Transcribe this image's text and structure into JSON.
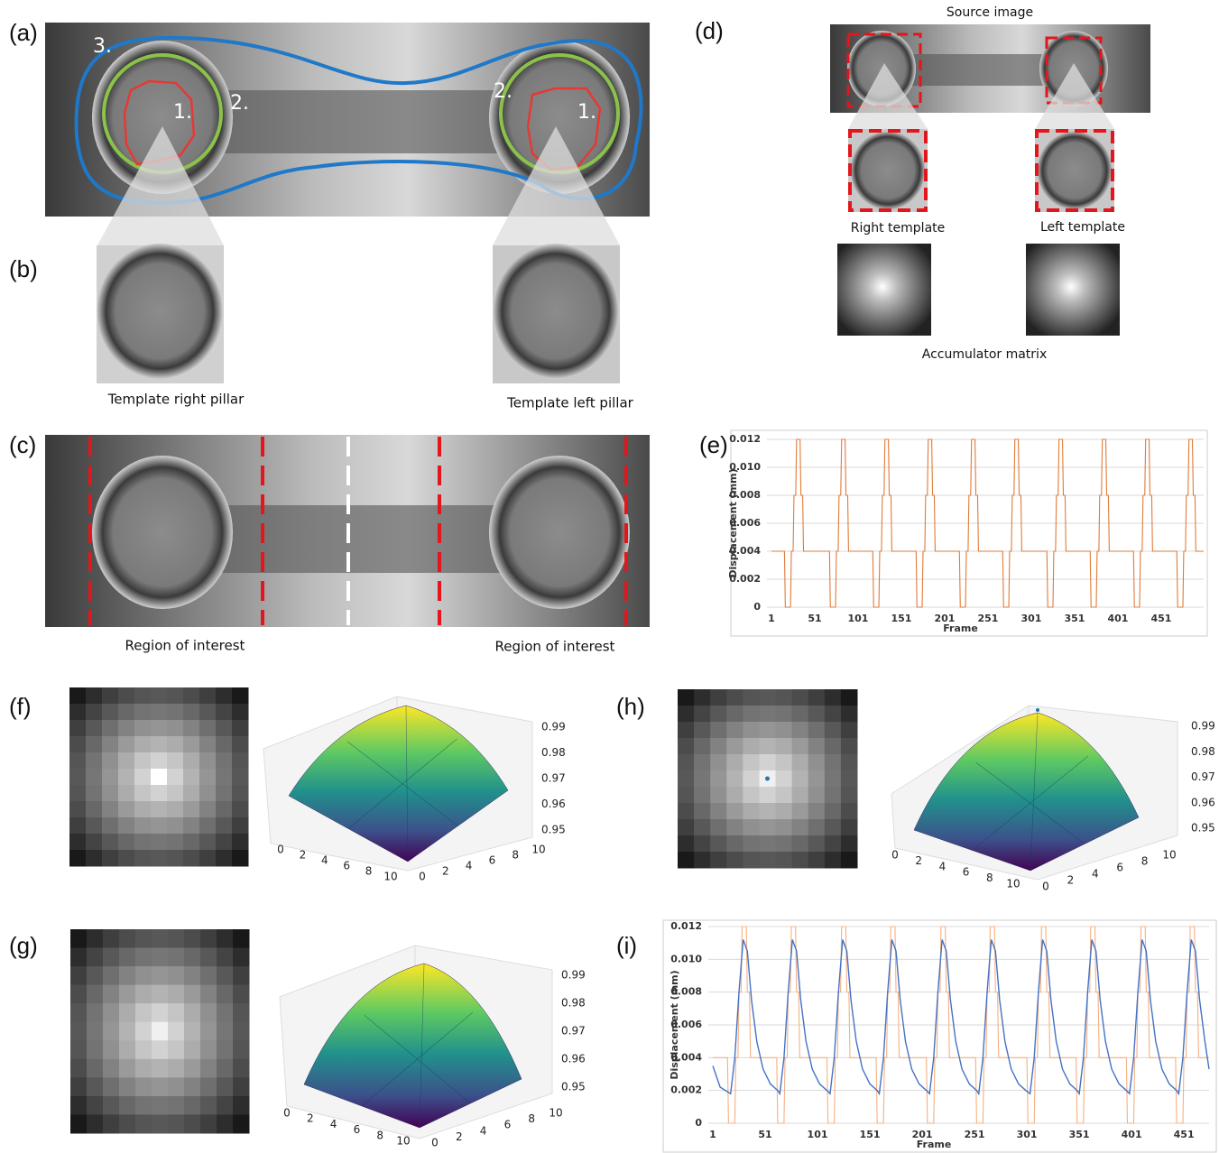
{
  "panel_labels": {
    "a": "(a)",
    "b": "(b)",
    "c": "(c)",
    "d": "(d)",
    "e": "(e)",
    "f": "(f)",
    "g": "(g)",
    "h": "(h)",
    "i": "(i)"
  },
  "panel_a": {
    "markers": [
      "3.",
      "2.",
      "1.",
      "2.",
      "1."
    ]
  },
  "panel_b": {
    "captions": [
      "Template right pillar",
      "Template left pillar"
    ]
  },
  "panel_c": {
    "captions": [
      "Region of interest",
      "Region of interest"
    ]
  },
  "panel_d": {
    "source": "Source image",
    "templates": [
      "Right template",
      "Left template"
    ],
    "accumulator": "Accumulator matrix"
  },
  "panel_f": {
    "zticks": [
      0.99,
      0.98,
      0.97,
      0.96,
      0.95
    ],
    "xticks": [
      0,
      2,
      4,
      6,
      8,
      10
    ],
    "yticks": [
      0,
      2,
      4,
      6,
      8,
      10
    ]
  },
  "panel_g": {
    "zticks": [
      0.99,
      0.98,
      0.97,
      0.96,
      0.95
    ],
    "xticks": [
      0,
      2,
      4,
      6,
      8,
      10
    ],
    "yticks": [
      0,
      2,
      4,
      6,
      8,
      10
    ]
  },
  "panel_h": {
    "zticks": [
      0.99,
      0.98,
      0.97,
      0.96,
      0.95
    ],
    "xticks": [
      0,
      2,
      4,
      6,
      8,
      10
    ],
    "yticks": [
      0,
      2,
      4,
      6,
      8,
      10
    ]
  },
  "chart_data": [
    {
      "type": "line",
      "xlabel": "Frame",
      "ylabel": "Displacement (mm)",
      "xlim": [
        1,
        500
      ],
      "ylim": [
        0,
        0.012
      ],
      "xticks": [
        1,
        51,
        101,
        151,
        201,
        251,
        301,
        351,
        401,
        451
      ],
      "yticks": [
        0,
        0.002,
        0.004,
        0.006,
        0.008,
        {
          "value": 0.01,
          "label": "0.010"
        },
        0.012
      ],
      "grid": true,
      "series": [
        {
          "color": "#e07b39",
          "x": [
            1,
            16,
            17,
            23,
            24,
            26,
            27,
            29,
            30,
            34,
            35,
            37,
            38,
            68,
            69,
            75,
            76,
            78,
            79,
            81,
            82,
            86,
            87,
            89,
            90,
            118,
            119,
            125,
            126,
            128,
            129,
            131,
            132,
            136,
            137,
            139,
            140,
            168,
            169,
            175,
            176,
            178,
            179,
            181,
            182,
            186,
            187,
            189,
            190,
            218,
            219,
            225,
            226,
            228,
            229,
            231,
            232,
            236,
            237,
            239,
            240,
            268,
            269,
            275,
            276,
            278,
            279,
            281,
            282,
            286,
            287,
            289,
            290,
            319,
            320,
            326,
            327,
            329,
            330,
            332,
            333,
            337,
            338,
            340,
            341,
            369,
            370,
            376,
            377,
            379,
            380,
            382,
            383,
            387,
            388,
            390,
            391,
            419,
            420,
            426,
            427,
            429,
            430,
            432,
            433,
            437,
            438,
            440,
            441,
            469,
            470,
            476,
            477,
            479,
            480,
            482,
            483,
            487,
            488,
            490,
            491,
            500
          ],
          "values": [
            0.004,
            0.004,
            0,
            0,
            0.004,
            0.004,
            0.008,
            0.008,
            0.012,
            0.012,
            0.008,
            0.008,
            0.004,
            0.004,
            0,
            0,
            0.004,
            0.004,
            0.008,
            0.008,
            0.012,
            0.012,
            0.008,
            0.008,
            0.004,
            0.004,
            0,
            0,
            0.004,
            0.004,
            0.008,
            0.008,
            0.012,
            0.012,
            0.008,
            0.008,
            0.004,
            0.004,
            0,
            0,
            0.004,
            0.004,
            0.008,
            0.008,
            0.012,
            0.012,
            0.008,
            0.008,
            0.004,
            0.004,
            0,
            0,
            0.004,
            0.004,
            0.008,
            0.008,
            0.012,
            0.012,
            0.008,
            0.008,
            0.004,
            0.004,
            0,
            0,
            0.004,
            0.004,
            0.008,
            0.008,
            0.012,
            0.012,
            0.008,
            0.008,
            0.004,
            0.004,
            0,
            0,
            0.004,
            0.004,
            0.008,
            0.008,
            0.012,
            0.012,
            0.008,
            0.008,
            0.004,
            0.004,
            0,
            0,
            0.004,
            0.004,
            0.008,
            0.008,
            0.012,
            0.012,
            0.008,
            0.008,
            0.004,
            0.004,
            0,
            0,
            0.004,
            0.004,
            0.008,
            0.008,
            0.012,
            0.012,
            0.008,
            0.008,
            0.004,
            0.004,
            0,
            0,
            0.004,
            0.004,
            0.008,
            0.008,
            0.012,
            0.012,
            0.008,
            0.008,
            0.004,
            0.004
          ]
        }
      ]
    },
    {
      "type": "line",
      "xlabel": "Frame",
      "ylabel": "Displacement (mm)",
      "xlim": [
        1,
        475
      ],
      "ylim": [
        0,
        0.012
      ],
      "xticks": [
        1,
        51,
        101,
        151,
        201,
        251,
        301,
        351,
        401,
        451
      ],
      "yticks": [
        0,
        0.002,
        0.004,
        0.006,
        0.008,
        {
          "value": 0.01,
          "label": "0.010"
        },
        0.012
      ],
      "grid": true,
      "series": [
        {
          "color": "#f4b183",
          "x": [
            1,
            15,
            16,
            22,
            23,
            25,
            26,
            28,
            29,
            33,
            34,
            36,
            37,
            62,
            63,
            69,
            70,
            72,
            73,
            75,
            76,
            80,
            81,
            83,
            84,
            110,
            111,
            117,
            118,
            120,
            121,
            123,
            124,
            128,
            129,
            131,
            132,
            157,
            158,
            164,
            165,
            167,
            168,
            170,
            171,
            175,
            176,
            178,
            179,
            205,
            206,
            212,
            213,
            215,
            216,
            218,
            219,
            223,
            224,
            226,
            227,
            252,
            253,
            259,
            260,
            262,
            263,
            265,
            266,
            270,
            271,
            273,
            274,
            301,
            302,
            308,
            309,
            311,
            312,
            314,
            315,
            319,
            320,
            322,
            323,
            348,
            349,
            355,
            356,
            358,
            359,
            361,
            362,
            366,
            367,
            369,
            370,
            396,
            397,
            403,
            404,
            406,
            407,
            409,
            410,
            414,
            415,
            417,
            418,
            443,
            444,
            450,
            451,
            453,
            454,
            456,
            457,
            461,
            462,
            464,
            465,
            475
          ],
          "values": [
            0.004,
            0.004,
            0,
            0,
            0.004,
            0.004,
            0.008,
            0.008,
            0.012,
            0.012,
            0.008,
            0.008,
            0.004,
            0.004,
            0,
            0,
            0.004,
            0.004,
            0.008,
            0.008,
            0.012,
            0.012,
            0.008,
            0.008,
            0.004,
            0.004,
            0,
            0,
            0.004,
            0.004,
            0.008,
            0.008,
            0.012,
            0.012,
            0.008,
            0.008,
            0.004,
            0.004,
            0,
            0,
            0.004,
            0.004,
            0.008,
            0.008,
            0.012,
            0.012,
            0.008,
            0.008,
            0.004,
            0.004,
            0,
            0,
            0.004,
            0.004,
            0.008,
            0.008,
            0.012,
            0.012,
            0.008,
            0.008,
            0.004,
            0.004,
            0,
            0,
            0.004,
            0.004,
            0.008,
            0.008,
            0.012,
            0.012,
            0.008,
            0.008,
            0.004,
            0.004,
            0,
            0,
            0.004,
            0.004,
            0.008,
            0.008,
            0.012,
            0.012,
            0.008,
            0.008,
            0.004,
            0.004,
            0,
            0,
            0.004,
            0.004,
            0.008,
            0.008,
            0.012,
            0.012,
            0.008,
            0.008,
            0.004,
            0.004,
            0,
            0,
            0.004,
            0.004,
            0.008,
            0.008,
            0.012,
            0.012,
            0.008,
            0.008,
            0.004,
            0.004,
            0,
            0,
            0.004,
            0.004,
            0.008,
            0.008,
            0.012,
            0.012,
            0.008,
            0.008,
            0.004,
            0.004
          ]
        },
        {
          "color": "#4472c4",
          "x": [
            1,
            8,
            18,
            22,
            26,
            30,
            34,
            38,
            43,
            49,
            56,
            63,
            65,
            69,
            73,
            77,
            81,
            85,
            90,
            96,
            103,
            110,
            113,
            117,
            121,
            125,
            129,
            133,
            138,
            144,
            151,
            158,
            160,
            164,
            168,
            172,
            176,
            180,
            185,
            191,
            198,
            205,
            208,
            212,
            216,
            220,
            224,
            228,
            233,
            239,
            246,
            253,
            255,
            259,
            263,
            267,
            271,
            275,
            280,
            286,
            293,
            300,
            304,
            308,
            312,
            316,
            320,
            324,
            329,
            335,
            342,
            349,
            351,
            355,
            359,
            363,
            367,
            371,
            376,
            382,
            389,
            396,
            399,
            403,
            407,
            411,
            415,
            419,
            424,
            430,
            437,
            444,
            446,
            450,
            454,
            458,
            462,
            466,
            471,
            475
          ],
          "values": [
            0.0035,
            0.0022,
            0.0018,
            0.004,
            0.008,
            0.0112,
            0.0105,
            0.0075,
            0.005,
            0.0033,
            0.0024,
            0.002,
            0.0018,
            0.004,
            0.008,
            0.0112,
            0.0105,
            0.0075,
            0.005,
            0.0033,
            0.0024,
            0.002,
            0.0018,
            0.004,
            0.008,
            0.0112,
            0.0105,
            0.0075,
            0.005,
            0.0033,
            0.0024,
            0.002,
            0.0018,
            0.004,
            0.008,
            0.0112,
            0.0105,
            0.0075,
            0.005,
            0.0033,
            0.0024,
            0.002,
            0.0018,
            0.004,
            0.008,
            0.0112,
            0.0105,
            0.0075,
            0.005,
            0.0033,
            0.0024,
            0.002,
            0.0018,
            0.004,
            0.008,
            0.0112,
            0.0105,
            0.0075,
            0.005,
            0.0033,
            0.0024,
            0.002,
            0.0018,
            0.004,
            0.008,
            0.0112,
            0.0105,
            0.0075,
            0.005,
            0.0033,
            0.0024,
            0.002,
            0.0018,
            0.004,
            0.008,
            0.0112,
            0.0105,
            0.0075,
            0.005,
            0.0033,
            0.0024,
            0.002,
            0.0018,
            0.004,
            0.008,
            0.0112,
            0.0105,
            0.0075,
            0.005,
            0.0033,
            0.0024,
            0.002,
            0.0018,
            0.004,
            0.008,
            0.0112,
            0.0105,
            0.0075,
            0.005,
            0.0033
          ]
        }
      ]
    }
  ]
}
